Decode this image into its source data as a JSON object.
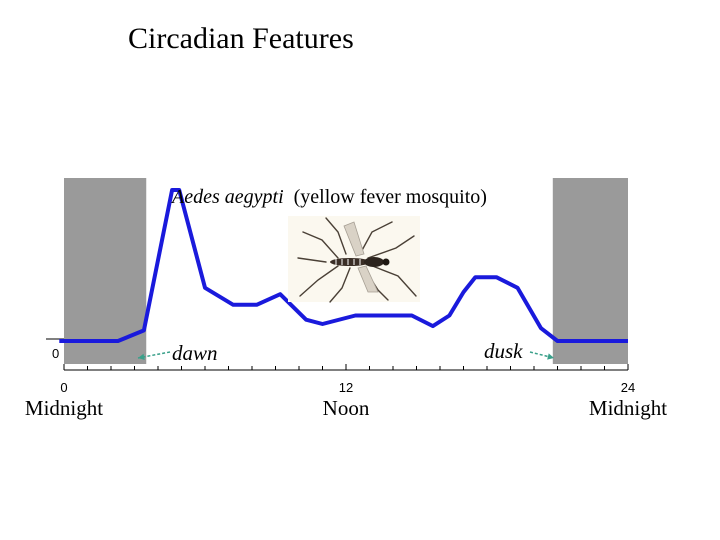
{
  "title": "Circadian Features",
  "colors": {
    "line": "#1a1adc",
    "night_band": "#9a9a9a",
    "arrow": "#3aa08a",
    "axis": "#000000"
  },
  "mosquito_icon": "mosquito-image",
  "chart_data": {
    "type": "line",
    "title": "",
    "annotation": {
      "species_italic": "Aedes aegypti",
      "common_name": "(yellow fever mosquito)"
    },
    "xlabel": "",
    "ylabel": "",
    "xlim": [
      0,
      24
    ],
    "ylim": [
      0,
      10
    ],
    "x_ticks": [
      0,
      12,
      24
    ],
    "x_tick_labels": [
      "0",
      "12",
      "24"
    ],
    "x_sublabels": [
      "Midnight",
      "Noon",
      "Midnight"
    ],
    "y_tick_label": "0",
    "night_bands": [
      [
        0,
        3.5
      ],
      [
        20.8,
        24
      ]
    ],
    "labels": {
      "dawn": "dawn",
      "dusk": "dusk"
    },
    "series": [
      {
        "x": [
          -0.2,
          2.3,
          3.4,
          4.6,
          4.9,
          6.0,
          7.2,
          8.2,
          9.2,
          10.3,
          11.0,
          12.4,
          13.7,
          14.8,
          15.7,
          16.4,
          17.0,
          17.5,
          18.4,
          19.3,
          20.3,
          21.0,
          24.0
        ],
        "y": [
          0.0,
          0.0,
          0.5,
          7.1,
          7.1,
          2.5,
          1.7,
          1.7,
          2.2,
          1.0,
          0.8,
          1.2,
          1.2,
          1.2,
          0.7,
          1.2,
          2.3,
          3.0,
          3.0,
          2.5,
          0.6,
          0.0,
          0.0
        ]
      }
    ]
  }
}
